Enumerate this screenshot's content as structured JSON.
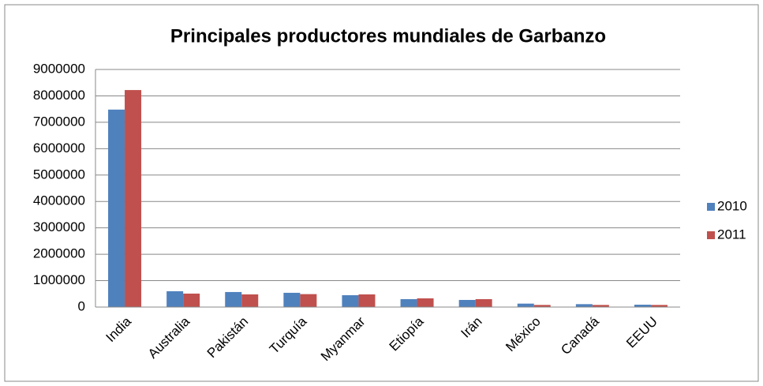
{
  "chart_data": {
    "type": "bar",
    "title": "Principales productores mundiales de Garbanzo",
    "categories": [
      "India",
      "Australia",
      "Pakistán",
      "Turquía",
      "Myanmar",
      "Etiopía",
      "Irán",
      "México",
      "Canadá",
      "EEUU"
    ],
    "series": [
      {
        "name": "2010",
        "color": "#4f81bd",
        "values": [
          7480000,
          600000,
          570000,
          540000,
          450000,
          300000,
          270000,
          130000,
          110000,
          90000
        ]
      },
      {
        "name": "2011",
        "color": "#c0504d",
        "values": [
          8220000,
          510000,
          480000,
          490000,
          480000,
          330000,
          300000,
          80000,
          80000,
          80000
        ]
      }
    ],
    "ylim": [
      0,
      9000000
    ],
    "yticks": [
      0,
      1000000,
      2000000,
      3000000,
      4000000,
      5000000,
      6000000,
      7000000,
      8000000,
      9000000
    ],
    "grid": true,
    "legend": "right"
  }
}
